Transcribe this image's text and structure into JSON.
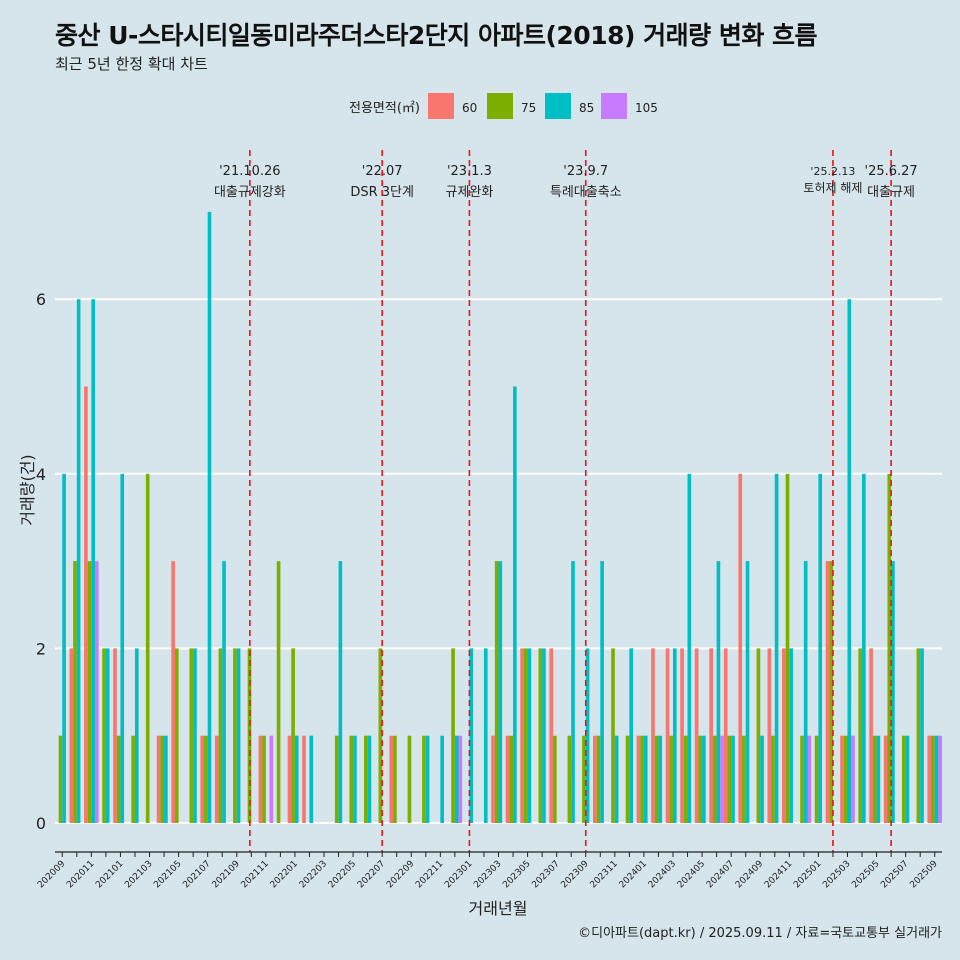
{
  "title": "중산 U-스타시티일동미라주더스타2단지 아파트(2018) 거래량 변화 흐름",
  "subtitle": "최근 5년 한정 확대 차트",
  "caption": "©디아파트(dapt.kr) / 2025.09.11 / 자료=국토교통부 실거래가",
  "chart_data": {
    "type": "bar",
    "xlabel": "거래년월",
    "ylabel": "거래량(건)",
    "ylim": [
      -0.3,
      7.6
    ],
    "yticks": [
      0,
      2,
      4,
      6
    ],
    "legend": {
      "title": "전용면적(㎡)",
      "position": "top",
      "entries": [
        {
          "name": "60",
          "color": "#f8766d"
        },
        {
          "name": "75",
          "color": "#7cae00"
        },
        {
          "name": "85",
          "color": "#00bfc4"
        },
        {
          "name": "105",
          "color": "#c77cff"
        }
      ]
    },
    "categories": [
      "202009",
      "202010",
      "202011",
      "202012",
      "202101",
      "202102",
      "202103",
      "202104",
      "202105",
      "202106",
      "202107",
      "202108",
      "202109",
      "202110",
      "202111",
      "202112",
      "202201",
      "202202",
      "202203",
      "202204",
      "202205",
      "202206",
      "202207",
      "202208",
      "202209",
      "202210",
      "202211",
      "202212",
      "202301",
      "202302",
      "202303",
      "202304",
      "202305",
      "202306",
      "202307",
      "202308",
      "202309",
      "202310",
      "202311",
      "202312",
      "202401",
      "202402",
      "202403",
      "202404",
      "202405",
      "202406",
      "202407",
      "202408",
      "202409",
      "202410",
      "202411",
      "202412",
      "202501",
      "202502",
      "202503",
      "202504",
      "202505",
      "202506",
      "202507",
      "202508",
      "202509"
    ],
    "series": [
      {
        "name": "60",
        "color": "#f8766d",
        "values": [
          0,
          2,
          5,
          0,
          2,
          0,
          0,
          1,
          3,
          0,
          1,
          1,
          0,
          0,
          1,
          0,
          1,
          1,
          0,
          0,
          0,
          0,
          0,
          1,
          0,
          0,
          0,
          0,
          0,
          0,
          1,
          1,
          2,
          0,
          2,
          0,
          0,
          1,
          0,
          0,
          1,
          2,
          2,
          2,
          2,
          2,
          2,
          4,
          0,
          2,
          2,
          0,
          0,
          3,
          1,
          0,
          2,
          1,
          0,
          0,
          1
        ]
      },
      {
        "name": "75",
        "color": "#7cae00",
        "values": [
          1,
          3,
          3,
          2,
          1,
          1,
          4,
          1,
          2,
          2,
          1,
          2,
          2,
          2,
          1,
          3,
          2,
          0,
          0,
          1,
          1,
          1,
          2,
          1,
          1,
          1,
          0,
          2,
          0,
          0,
          3,
          1,
          2,
          2,
          1,
          1,
          1,
          1,
          2,
          1,
          1,
          1,
          1,
          1,
          1,
          1,
          1,
          1,
          2,
          1,
          4,
          1,
          1,
          3,
          1,
          2,
          1,
          4,
          1,
          2,
          1
        ]
      },
      {
        "name": "85",
        "color": "#00bfc4",
        "values": [
          4,
          6,
          6,
          2,
          4,
          2,
          0,
          1,
          0,
          2,
          7,
          3,
          2,
          0,
          0,
          0,
          1,
          1,
          0,
          3,
          1,
          1,
          0,
          0,
          0,
          1,
          1,
          1,
          2,
          2,
          3,
          5,
          2,
          2,
          0,
          3,
          2,
          3,
          1,
          2,
          1,
          1,
          2,
          4,
          1,
          3,
          1,
          3,
          1,
          4,
          2,
          3,
          4,
          0,
          6,
          4,
          1,
          3,
          1,
          2,
          1
        ]
      },
      {
        "name": "105",
        "color": "#c77cff",
        "values": [
          0,
          0,
          3,
          0,
          0,
          0,
          0,
          0,
          0,
          0,
          0,
          0,
          0,
          0,
          1,
          0,
          0,
          0,
          0,
          0,
          0,
          0,
          0,
          0,
          0,
          0,
          0,
          1,
          0,
          0,
          0,
          0,
          0,
          0,
          0,
          0,
          0,
          0,
          0,
          0,
          0,
          0,
          0,
          0,
          0,
          1,
          0,
          0,
          0,
          0,
          0,
          1,
          0,
          0,
          1,
          0,
          0,
          0,
          0,
          0,
          1
        ]
      }
    ],
    "annotations": [
      {
        "at": "202110",
        "offset": -0.1,
        "date": "'21.10.26",
        "label": "대출규제강화"
      },
      {
        "at": "202207",
        "offset": 0,
        "date": "'22.07",
        "label": "DSR 3단계"
      },
      {
        "at": "202301",
        "offset": 0,
        "date": "'23.1.3",
        "label": "규제완화"
      },
      {
        "at": "202309",
        "offset": 0,
        "date": "'23.9.7",
        "label": "특례대출축소"
      },
      {
        "at": "202502",
        "offset": 0,
        "date": "'25.2.13",
        "label": "토허제 해제"
      },
      {
        "at": "202506",
        "offset": 0,
        "date": "'25.6.27",
        "label": "대출규제"
      }
    ]
  }
}
